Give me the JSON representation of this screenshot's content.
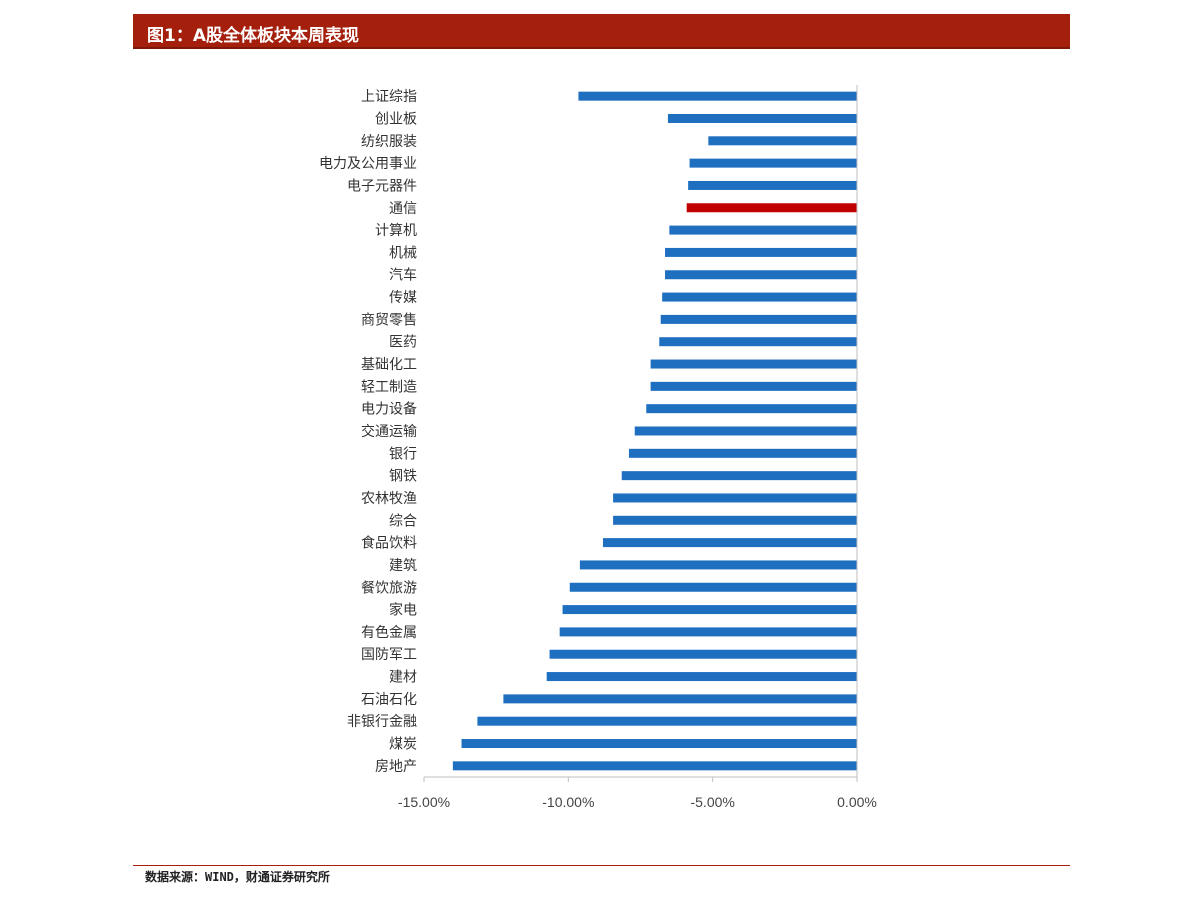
{
  "header": {
    "title": "图1：A股全体板块本周表现"
  },
  "footer": {
    "source": "数据来源：WIND，财通证券研究所"
  },
  "colors": {
    "bar": "#1f6fc1",
    "highlight": "#c00000",
    "title_bg": "#a4200d"
  },
  "chart_data": {
    "type": "bar",
    "orientation": "horizontal",
    "title": "",
    "xlabel": "",
    "ylabel": "",
    "xlim": [
      -0.15,
      0
    ],
    "xticks": [
      -0.15,
      -0.1,
      -0.05,
      0
    ],
    "xtick_labels": [
      "-15.00%",
      "-10.00%",
      "-5.00%",
      "0.00%"
    ],
    "highlight_category": "通信",
    "categories": [
      "上证综指",
      "创业板",
      "纺织服装",
      "电力及公用事业",
      "电子元器件",
      "通信",
      "计算机",
      "机械",
      "汽车",
      "传媒",
      "商贸零售",
      "医药",
      "基础化工",
      "轻工制造",
      "电力设备",
      "交通运输",
      "银行",
      "钢铁",
      "农林牧渔",
      "综合",
      "食品饮料",
      "建筑",
      "餐饮旅游",
      "家电",
      "有色金属",
      "国防军工",
      "建材",
      "石油石化",
      "非银行金融",
      "煤炭",
      "房地产"
    ],
    "values": [
      -0.0965,
      -0.0655,
      -0.0515,
      -0.058,
      -0.0585,
      -0.059,
      -0.065,
      -0.0665,
      -0.0665,
      -0.0675,
      -0.068,
      -0.0685,
      -0.0715,
      -0.0715,
      -0.073,
      -0.077,
      -0.079,
      -0.0815,
      -0.0845,
      -0.0845,
      -0.088,
      -0.096,
      -0.0995,
      -0.102,
      -0.103,
      -0.1065,
      -0.1075,
      -0.1225,
      -0.1315,
      -0.137,
      -0.14
    ],
    "grid": false,
    "legend": "none"
  }
}
